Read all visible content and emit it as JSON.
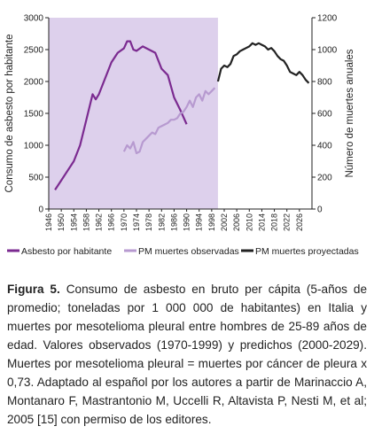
{
  "chart_data": {
    "type": "line",
    "ylabel": "Consumo de asbesto por habitante",
    "y2label": "Número de muertes anuales",
    "xlim": [
      1946,
      2030
    ],
    "xticks": [
      1946,
      1950,
      1954,
      1958,
      1962,
      1966,
      1970,
      1974,
      1978,
      1982,
      1986,
      1990,
      1994,
      1998,
      2002,
      2006,
      2010,
      2014,
      2018,
      2022,
      2026
    ],
    "ylim": [
      0,
      3000
    ],
    "yticks": [
      0,
      500,
      1000,
      1500,
      2000,
      2500,
      3000
    ],
    "y2lim": [
      0,
      1200
    ],
    "y2ticks": [
      0,
      200,
      400,
      600,
      800,
      1000,
      1200
    ],
    "shade": {
      "x": [
        1946,
        2000
      ],
      "color": "#ddd0ec"
    },
    "series": [
      {
        "name": "Asbesto por habitante",
        "color": "#7b2a90",
        "x": [
          1948,
          1950,
          1952,
          1954,
          1956,
          1958,
          1960,
          1961,
          1962,
          1964,
          1966,
          1968,
          1970,
          1971,
          1972,
          1973,
          1974,
          1976,
          1978,
          1980,
          1982,
          1984,
          1986,
          1988,
          1990
        ],
        "values": [
          300,
          450,
          600,
          750,
          1000,
          1400,
          1800,
          1720,
          1800,
          2050,
          2300,
          2450,
          2520,
          2630,
          2630,
          2500,
          2480,
          2550,
          2500,
          2450,
          2200,
          2100,
          1750,
          1550,
          1330
        ]
      },
      {
        "name": "PM muertes observadas",
        "color": "#b79ad0",
        "axis": "y2",
        "x": [
          1970,
          1971,
          1972,
          1973,
          1974,
          1975,
          1976,
          1977,
          1978,
          1979,
          1980,
          1981,
          1982,
          1983,
          1984,
          1985,
          1986,
          1987,
          1988,
          1989,
          1990,
          1991,
          1992,
          1993,
          1994,
          1995,
          1996,
          1997,
          1998,
          1999
        ],
        "values": [
          360,
          400,
          380,
          420,
          350,
          360,
          420,
          440,
          460,
          480,
          470,
          510,
          520,
          530,
          540,
          560,
          560,
          570,
          600,
          610,
          640,
          680,
          640,
          700,
          720,
          680,
          740,
          720,
          740,
          760
        ]
      },
      {
        "name": "PM muertes proyectadas",
        "color": "#222222",
        "axis": "y2",
        "x": [
          2000,
          2001,
          2002,
          2003,
          2004,
          2005,
          2006,
          2007,
          2008,
          2009,
          2010,
          2011,
          2012,
          2013,
          2014,
          2015,
          2016,
          2017,
          2018,
          2019,
          2020,
          2021,
          2022,
          2023,
          2024,
          2025,
          2026,
          2027,
          2028,
          2029
        ],
        "values": [
          800,
          880,
          900,
          890,
          910,
          960,
          970,
          990,
          1000,
          1010,
          1020,
          1040,
          1030,
          1040,
          1030,
          1020,
          1000,
          1010,
          990,
          960,
          940,
          930,
          900,
          860,
          850,
          840,
          860,
          840,
          810,
          790
        ]
      }
    ]
  },
  "caption": {
    "label": "Figura 5.",
    "text": "Consumo de asbesto en bruto per cápita (5-años de promedio; toneladas por 1 000 000 de habitantes) en Italia y muertes por mesotelioma pleural entre hombres de 25-89 años de edad. Valores observados (1970-1999) y predichos (2000-2029). Muertes por mesotelioma pleural = muertes por cáncer de pleura x 0,73. Adaptado al español por los autores a partir de Marinaccio A, Montanaro F, Mastrantonio M, Uccelli R, Altavista P, Nesti M, et al; 2005 [15] con permiso de los editores."
  }
}
